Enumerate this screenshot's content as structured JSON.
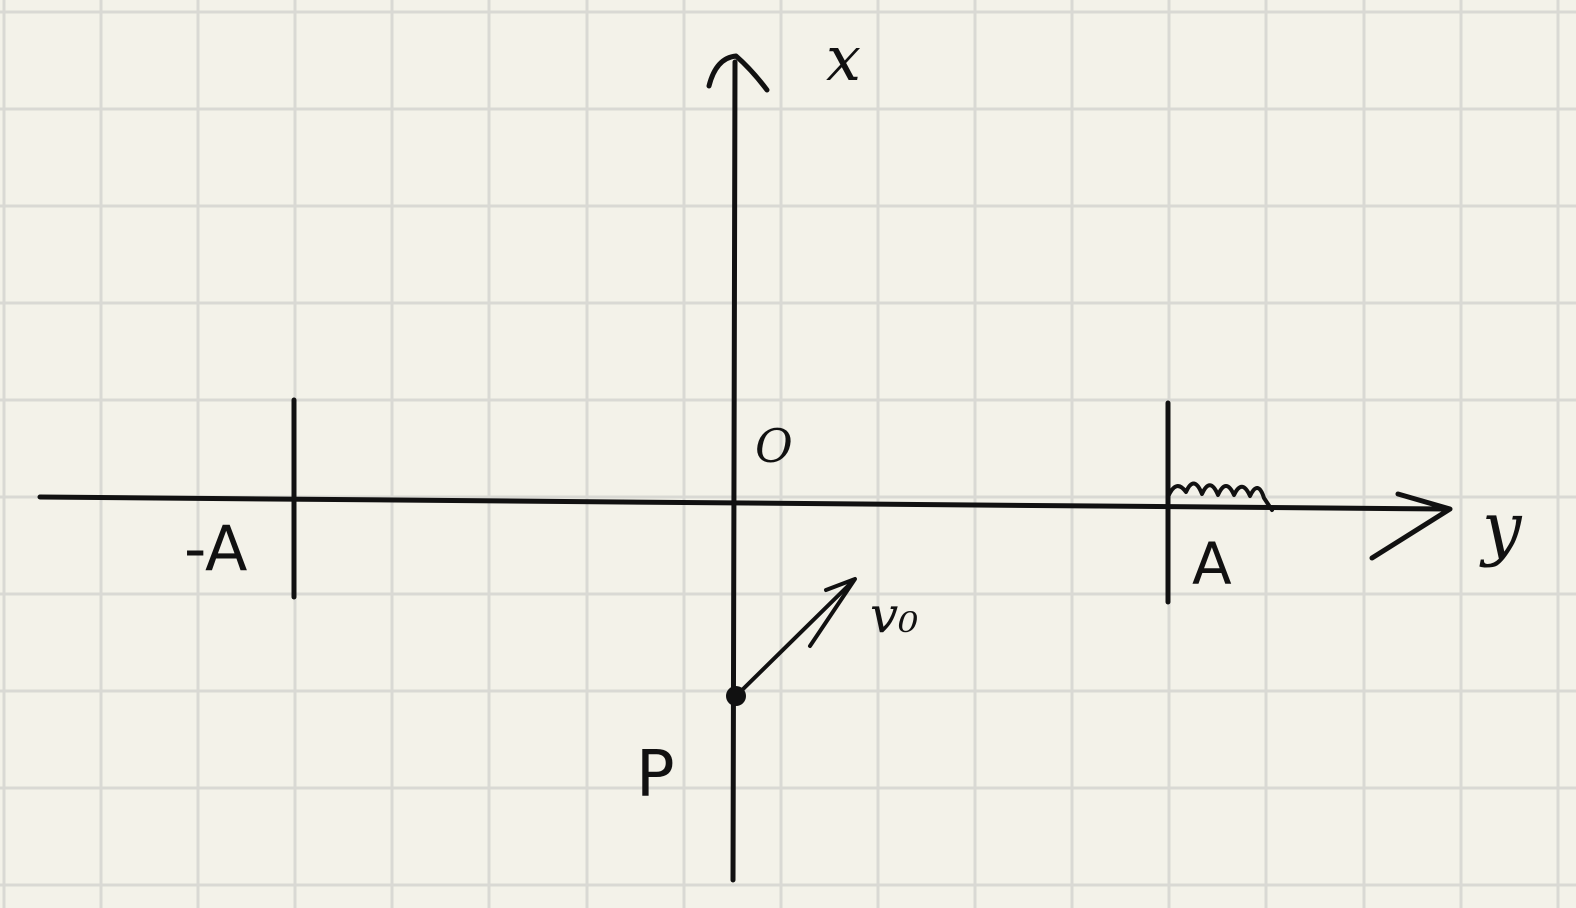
{
  "labels": {
    "x_axis": "x",
    "y_axis": "y",
    "origin": "O",
    "neg_a": "-A",
    "pos_a": "A",
    "point": "P",
    "velocity": "v₀"
  },
  "colors": {
    "paper": "#f3f2e9",
    "grid": "#d9d9d4",
    "ink": "#111111"
  }
}
